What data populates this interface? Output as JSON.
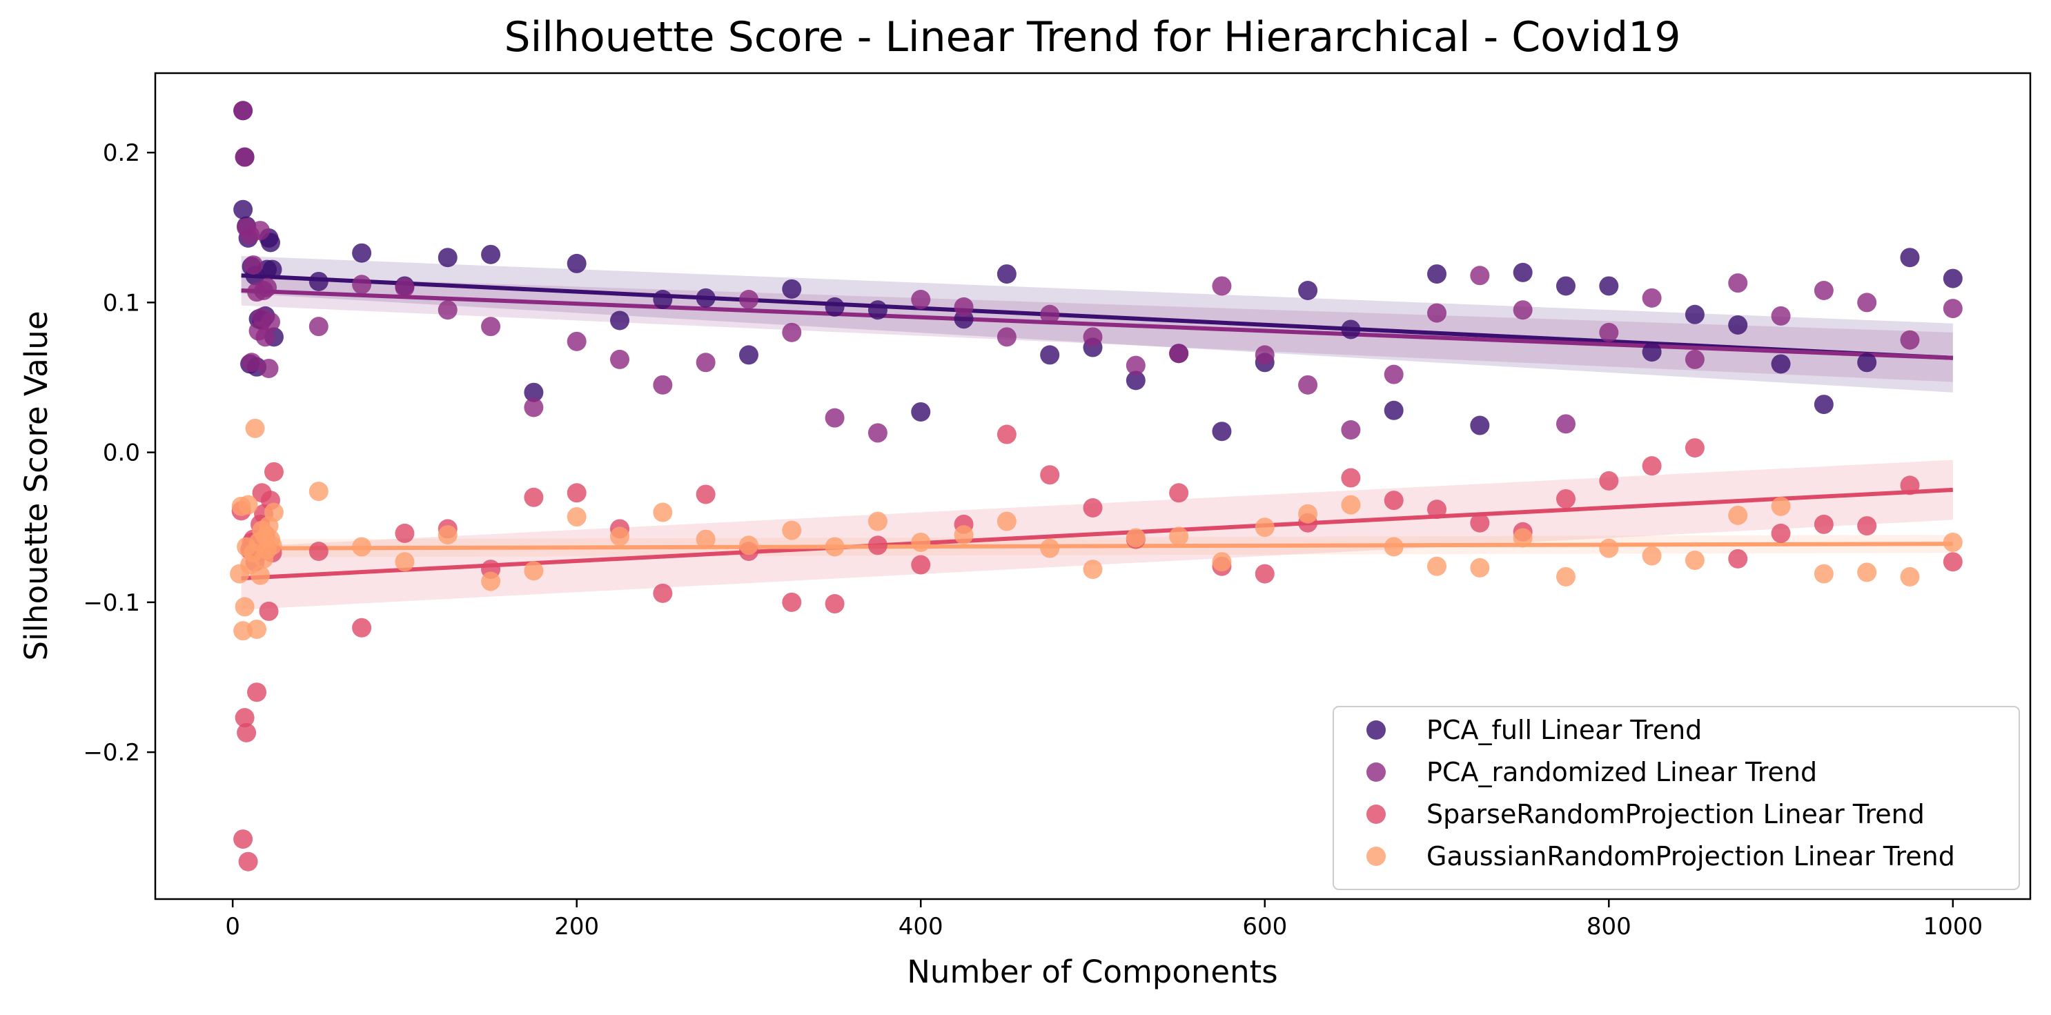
{
  "chart_data": {
    "type": "scatter",
    "title": "Silhouette Score - Linear Trend for Hierarchical - Covid19",
    "xlabel": "Number of Components",
    "ylabel": "Silhouette Score Value",
    "xlim": [
      -45,
      1045
    ],
    "ylim": [
      -0.298,
      0.253
    ],
    "xticks": [
      0,
      200,
      400,
      600,
      800,
      1000
    ],
    "xtick_labels": [
      "0",
      "200",
      "400",
      "600",
      "800",
      "1000"
    ],
    "yticks": [
      -0.2,
      -0.1,
      0.0,
      0.1,
      0.2
    ],
    "ytick_labels": [
      "−0.2",
      "−0.1",
      "0.0",
      "0.1",
      "0.2"
    ],
    "grid": false,
    "legend_position": "lower-right",
    "series": [
      {
        "name": "PCA_full Linear Trend",
        "color": "#3b0f6f",
        "trend": {
          "x": [
            5,
            1000
          ],
          "y": [
            0.118,
            0.063
          ]
        },
        "band": {
          "x": [
            5,
            1000
          ],
          "upper": [
            0.131,
            0.086
          ],
          "lower": [
            0.106,
            0.04
          ]
        },
        "points": [
          [
            6,
            0.228
          ],
          [
            6,
            0.162
          ],
          [
            7,
            0.197
          ],
          [
            8,
            0.151
          ],
          [
            9,
            0.143
          ],
          [
            10,
            0.059
          ],
          [
            11,
            0.124
          ],
          [
            13,
            0.118
          ],
          [
            14,
            0.057
          ],
          [
            15,
            0.089
          ],
          [
            17,
            0.088
          ],
          [
            19,
            0.091
          ],
          [
            20,
            0.122
          ],
          [
            21,
            0.143
          ],
          [
            22,
            0.14
          ],
          [
            23,
            0.122
          ],
          [
            24,
            0.077
          ],
          [
            50,
            0.114
          ],
          [
            75,
            0.133
          ],
          [
            100,
            0.111
          ],
          [
            125,
            0.13
          ],
          [
            150,
            0.132
          ],
          [
            175,
            0.04
          ],
          [
            200,
            0.126
          ],
          [
            225,
            0.088
          ],
          [
            250,
            0.102
          ],
          [
            275,
            0.103
          ],
          [
            300,
            0.065
          ],
          [
            325,
            0.109
          ],
          [
            350,
            0.097
          ],
          [
            375,
            0.095
          ],
          [
            400,
            0.027
          ],
          [
            425,
            0.089
          ],
          [
            450,
            0.119
          ],
          [
            475,
            0.065
          ],
          [
            500,
            0.07
          ],
          [
            525,
            0.048
          ],
          [
            550,
            0.066
          ],
          [
            575,
            0.014
          ],
          [
            600,
            0.06
          ],
          [
            625,
            0.108
          ],
          [
            650,
            0.082
          ],
          [
            675,
            0.028
          ],
          [
            700,
            0.119
          ],
          [
            725,
            0.018
          ],
          [
            750,
            0.12
          ],
          [
            775,
            0.111
          ],
          [
            800,
            0.111
          ],
          [
            825,
            0.067
          ],
          [
            850,
            0.092
          ],
          [
            875,
            0.085
          ],
          [
            900,
            0.059
          ],
          [
            925,
            0.032
          ],
          [
            950,
            0.06
          ],
          [
            975,
            0.13
          ],
          [
            1000,
            0.116
          ]
        ]
      },
      {
        "name": "PCA_randomized Linear Trend",
        "color": "#8c2981",
        "trend": {
          "x": [
            5,
            1000
          ],
          "y": [
            0.108,
            0.063
          ]
        },
        "band": {
          "x": [
            5,
            1000
          ],
          "upper": [
            0.118,
            0.08
          ],
          "lower": [
            0.098,
            0.047
          ]
        },
        "points": [
          [
            6,
            0.228
          ],
          [
            7,
            0.197
          ],
          [
            8,
            0.15
          ],
          [
            10,
            0.145
          ],
          [
            11,
            0.06
          ],
          [
            12,
            0.125
          ],
          [
            14,
            0.107
          ],
          [
            15,
            0.081
          ],
          [
            16,
            0.148
          ],
          [
            17,
            0.09
          ],
          [
            18,
            0.108
          ],
          [
            19,
            0.077
          ],
          [
            20,
            0.11
          ],
          [
            21,
            0.056
          ],
          [
            22,
            0.087
          ],
          [
            50,
            0.084
          ],
          [
            75,
            0.112
          ],
          [
            100,
            0.11
          ],
          [
            125,
            0.095
          ],
          [
            150,
            0.084
          ],
          [
            175,
            0.03
          ],
          [
            200,
            0.074
          ],
          [
            225,
            0.062
          ],
          [
            250,
            0.045
          ],
          [
            275,
            0.06
          ],
          [
            300,
            0.102
          ],
          [
            325,
            0.08
          ],
          [
            350,
            0.023
          ],
          [
            375,
            0.013
          ],
          [
            400,
            0.102
          ],
          [
            425,
            0.097
          ],
          [
            450,
            0.077
          ],
          [
            475,
            0.092
          ],
          [
            500,
            0.077
          ],
          [
            525,
            0.058
          ],
          [
            550,
            0.066
          ],
          [
            575,
            0.111
          ],
          [
            600,
            0.065
          ],
          [
            625,
            0.045
          ],
          [
            650,
            0.015
          ],
          [
            675,
            0.052
          ],
          [
            700,
            0.093
          ],
          [
            725,
            0.118
          ],
          [
            750,
            0.095
          ],
          [
            775,
            0.019
          ],
          [
            800,
            0.08
          ],
          [
            825,
            0.103
          ],
          [
            850,
            0.062
          ],
          [
            875,
            0.113
          ],
          [
            900,
            0.091
          ],
          [
            925,
            0.108
          ],
          [
            950,
            0.1
          ],
          [
            975,
            0.075
          ],
          [
            1000,
            0.096
          ]
        ]
      },
      {
        "name": "SparseRandomProjection Linear Trend",
        "color": "#de4968",
        "trend": {
          "x": [
            5,
            1000
          ],
          "y": [
            -0.084,
            -0.025
          ]
        },
        "band": {
          "x": [
            5,
            1000
          ],
          "upper": [
            -0.063,
            -0.005
          ],
          "lower": [
            -0.105,
            -0.045
          ]
        },
        "points": [
          [
            5,
            -0.039
          ],
          [
            6,
            -0.258
          ],
          [
            7,
            -0.177
          ],
          [
            8,
            -0.187
          ],
          [
            9,
            -0.273
          ],
          [
            10,
            -0.065
          ],
          [
            11,
            -0.06
          ],
          [
            12,
            -0.058
          ],
          [
            13,
            -0.073
          ],
          [
            14,
            -0.16
          ],
          [
            15,
            -0.067
          ],
          [
            16,
            -0.048
          ],
          [
            17,
            -0.027
          ],
          [
            18,
            -0.041
          ],
          [
            19,
            -0.055
          ],
          [
            20,
            -0.064
          ],
          [
            21,
            -0.106
          ],
          [
            22,
            -0.032
          ],
          [
            23,
            -0.067
          ],
          [
            24,
            -0.013
          ],
          [
            50,
            -0.066
          ],
          [
            75,
            -0.117
          ],
          [
            100,
            -0.054
          ],
          [
            125,
            -0.051
          ],
          [
            150,
            -0.078
          ],
          [
            175,
            -0.03
          ],
          [
            200,
            -0.027
          ],
          [
            225,
            -0.051
          ],
          [
            250,
            -0.094
          ],
          [
            275,
            -0.028
          ],
          [
            300,
            -0.066
          ],
          [
            325,
            -0.1
          ],
          [
            350,
            -0.101
          ],
          [
            375,
            -0.062
          ],
          [
            400,
            -0.075
          ],
          [
            425,
            -0.048
          ],
          [
            450,
            0.012
          ],
          [
            475,
            -0.015
          ],
          [
            500,
            -0.037
          ],
          [
            525,
            -0.058
          ],
          [
            550,
            -0.027
          ],
          [
            575,
            -0.076
          ],
          [
            600,
            -0.081
          ],
          [
            625,
            -0.047
          ],
          [
            650,
            -0.017
          ],
          [
            675,
            -0.032
          ],
          [
            700,
            -0.038
          ],
          [
            725,
            -0.047
          ],
          [
            750,
            -0.053
          ],
          [
            775,
            -0.031
          ],
          [
            800,
            -0.019
          ],
          [
            825,
            -0.009
          ],
          [
            850,
            0.003
          ],
          [
            875,
            -0.071
          ],
          [
            900,
            -0.054
          ],
          [
            925,
            -0.048
          ],
          [
            950,
            -0.049
          ],
          [
            975,
            -0.022
          ],
          [
            1000,
            -0.073
          ]
        ]
      },
      {
        "name": "GaussianRandomProjection Linear Trend",
        "color": "#fe9f6d",
        "trend": {
          "x": [
            5,
            1000
          ],
          "y": [
            -0.064,
            -0.061
          ]
        },
        "band": {
          "x": [
            5,
            1000
          ],
          "upper": [
            -0.058,
            -0.055
          ],
          "lower": [
            -0.07,
            -0.067
          ]
        },
        "points": [
          [
            4,
            -0.081
          ],
          [
            5,
            -0.036
          ],
          [
            6,
            -0.119
          ],
          [
            7,
            -0.103
          ],
          [
            8,
            -0.063
          ],
          [
            9,
            -0.035
          ],
          [
            10,
            -0.075
          ],
          [
            12,
            -0.067
          ],
          [
            13,
            0.016
          ],
          [
            14,
            -0.118
          ],
          [
            15,
            -0.06
          ],
          [
            16,
            -0.082
          ],
          [
            17,
            -0.052
          ],
          [
            18,
            -0.071
          ],
          [
            19,
            -0.056
          ],
          [
            20,
            -0.065
          ],
          [
            21,
            -0.049
          ],
          [
            22,
            -0.058
          ],
          [
            23,
            -0.062
          ],
          [
            24,
            -0.04
          ],
          [
            50,
            -0.026
          ],
          [
            75,
            -0.063
          ],
          [
            100,
            -0.073
          ],
          [
            125,
            -0.055
          ],
          [
            150,
            -0.086
          ],
          [
            175,
            -0.079
          ],
          [
            200,
            -0.043
          ],
          [
            225,
            -0.056
          ],
          [
            250,
            -0.04
          ],
          [
            275,
            -0.058
          ],
          [
            300,
            -0.062
          ],
          [
            325,
            -0.052
          ],
          [
            350,
            -0.063
          ],
          [
            375,
            -0.046
          ],
          [
            400,
            -0.06
          ],
          [
            425,
            -0.055
          ],
          [
            450,
            -0.046
          ],
          [
            475,
            -0.064
          ],
          [
            500,
            -0.078
          ],
          [
            525,
            -0.057
          ],
          [
            550,
            -0.056
          ],
          [
            575,
            -0.073
          ],
          [
            600,
            -0.05
          ],
          [
            625,
            -0.041
          ],
          [
            650,
            -0.035
          ],
          [
            675,
            -0.063
          ],
          [
            700,
            -0.076
          ],
          [
            725,
            -0.077
          ],
          [
            750,
            -0.057
          ],
          [
            775,
            -0.083
          ],
          [
            800,
            -0.064
          ],
          [
            825,
            -0.069
          ],
          [
            850,
            -0.072
          ],
          [
            875,
            -0.042
          ],
          [
            900,
            -0.036
          ],
          [
            925,
            -0.081
          ],
          [
            950,
            -0.08
          ],
          [
            975,
            -0.083
          ],
          [
            1000,
            -0.06
          ]
        ]
      }
    ]
  }
}
